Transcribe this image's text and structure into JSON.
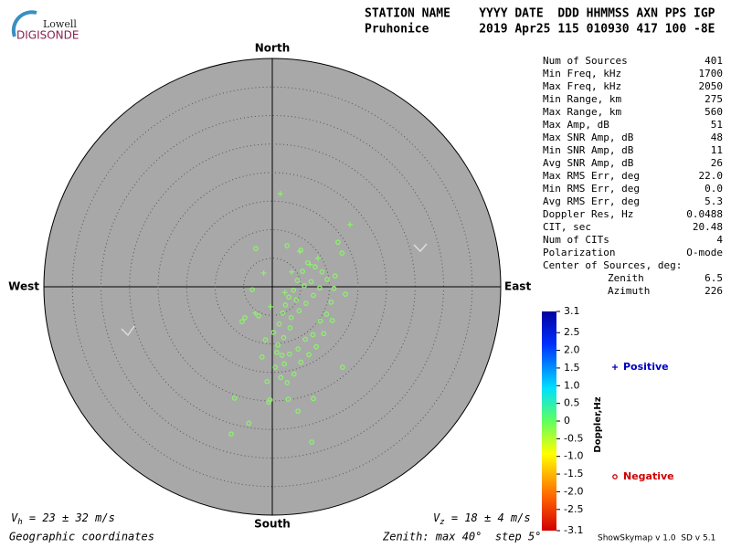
{
  "header": {
    "logo_top": "Lowell",
    "logo_bottom": "DIGISONDE",
    "line1": "STATION NAME    YYYY DATE  DDD HHMMSS AXN PPS IGP",
    "line2": "Pruhonice       2019 Apr25 115 010930 417 100 -8E"
  },
  "stats": {
    "rows": [
      [
        "Num of Sources",
        "401"
      ],
      [
        "Min Freq, kHz",
        "1700"
      ],
      [
        "Max Freq, kHz",
        "2050"
      ],
      [
        "Min Range, km",
        "275"
      ],
      [
        "Max Range, km",
        "560"
      ],
      [
        "Max Amp, dB",
        "51"
      ],
      [
        "Max SNR Amp, dB",
        "48"
      ],
      [
        "Min SNR Amp, dB",
        "11"
      ],
      [
        "Avg SNR Amp, dB",
        "26"
      ],
      [
        "Max RMS Err, deg",
        "22.0"
      ],
      [
        "Min RMS Err, deg",
        "0.0"
      ],
      [
        "Avg RMS Err, deg",
        "5.3"
      ],
      [
        "Doppler Res, Hz",
        "0.0488"
      ],
      [
        "CIT, sec",
        "20.48"
      ],
      [
        "Num of CITs",
        "4"
      ],
      [
        "Polarization",
        "O-mode"
      ]
    ],
    "center_title": "Center of Sources, deg:",
    "center_rows": [
      [
        "Zenith",
        "6.5"
      ],
      [
        "Azimuth",
        "226"
      ]
    ]
  },
  "chart_data": {
    "type": "scatter",
    "xlim": [
      -40,
      40
    ],
    "ylim": [
      -40,
      40
    ],
    "rings": [
      5,
      10,
      15,
      20,
      25,
      30,
      35,
      40
    ],
    "directions": {
      "north": "North",
      "south": "South",
      "east": "East",
      "west": "West"
    },
    "series": [
      {
        "name": "Negative",
        "marker": "o",
        "color": "#8cf06c",
        "legend_color": "#d00000",
        "x": [
          -2.9,
          2.6,
          5.0,
          11.5,
          12.2,
          -3.5,
          -4.8,
          -5.3,
          -6.6,
          -4.1,
          -7.2,
          -0.4,
          -0.6,
          2.8,
          4.5,
          7.2,
          12.3,
          6.9,
          0.2,
          1.0,
          1.7,
          2.1,
          3.0,
          4.5,
          5.8,
          7.1,
          8.4,
          9.5,
          10.3,
          10.8,
          9.6,
          8.7,
          7.5,
          6.2,
          5.3,
          4.4,
          3.7,
          2.9,
          2.3,
          1.8,
          3.3,
          4.7,
          5.9,
          7.2,
          8.3,
          6.8,
          5.6,
          4.2,
          3.1,
          2.0,
          1.2,
          0.8,
          0.5,
          1.5,
          2.6,
          3.8,
          5.0,
          6.4,
          7.7,
          9.0,
          10.5,
          11.0,
          12.8,
          -1.2,
          -2.4,
          -1.8,
          -0.9
        ],
        "y": [
          6.7,
          7.2,
          6.4,
          7.8,
          5.9,
          -0.5,
          -5.4,
          -6.1,
          -19.5,
          -23.9,
          -25.8,
          -19.8,
          -20.2,
          -19.7,
          -21.8,
          -19.6,
          -14.1,
          -27.2,
          -8.0,
          -10.2,
          -12.0,
          -13.5,
          -11.8,
          -10.9,
          -9.2,
          -8.4,
          -6.0,
          -4.8,
          -2.7,
          -0.3,
          1.3,
          2.6,
          3.5,
          4.2,
          2.7,
          1.1,
          -0.6,
          -1.8,
          -3.2,
          -4.6,
          -5.4,
          -4.2,
          -2.9,
          -1.5,
          -0.2,
          0.9,
          0.2,
          -2.3,
          -7.2,
          -8.9,
          -6.5,
          -11.5,
          -14.1,
          -15.9,
          -16.8,
          -15.3,
          -13.2,
          -11.9,
          -10.5,
          -8.2,
          -5.9,
          1.9,
          -1.3,
          -9.3,
          -5.1,
          -12.3,
          -16.6
        ]
      },
      {
        "name": "Positive",
        "marker": "+",
        "color": "#8cf06c",
        "legend_color": "#0000c0",
        "x": [
          1.4,
          13.6,
          -1.5,
          3.4,
          2.2,
          6.6,
          -0.3,
          -3.0,
          8.0,
          4.8
        ],
        "y": [
          16.3,
          10.9,
          2.4,
          2.6,
          -1.0,
          3.9,
          -3.5,
          -4.6,
          5.0,
          6.2
        ]
      }
    ],
    "colorbar": {
      "label": "Doppler,Hz",
      "lim": [
        -3.1,
        3.1
      ],
      "ticks": [
        3.1,
        2.5,
        {
          "value": 2,
          "label": "2.0"
        },
        1.5,
        {
          "value": 1,
          "label": "1.0"
        },
        0.5,
        0,
        -0.5,
        {
          "value": -1,
          "label": "-1.0"
        },
        -1.5,
        {
          "value": -2,
          "label": "-2.0"
        },
        -2.5,
        -3.1
      ]
    }
  },
  "footer": {
    "vh": "V",
    "vh_sub": "h",
    "vh_text": " = 23 ± 32 m/s",
    "vz": "V",
    "vz_sub": "z",
    "vz_text": " = 18 ± 4 m/s",
    "coords": "Geographic coordinates",
    "zenith": "Zenith: max 40°  step 5°",
    "version": "ShowSkymap v 1.0  SD v 5.1"
  }
}
